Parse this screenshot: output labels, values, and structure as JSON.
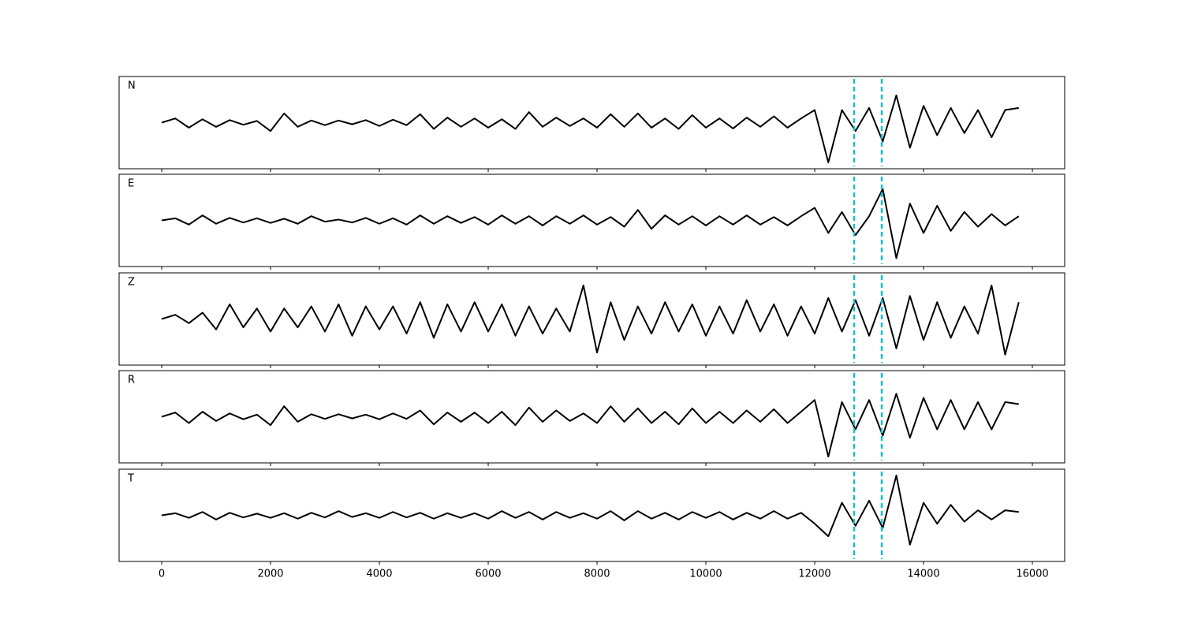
{
  "chart_data": [
    {
      "type": "line",
      "label": "N",
      "color": "#000000",
      "xlim": [
        -783,
        16594
      ],
      "ylim": [
        -1.1,
        1.1
      ],
      "vlines": [
        12725,
        13232
      ],
      "vline_color": "#17becf",
      "x": [
        0,
        250,
        500,
        750,
        1000,
        1250,
        1500,
        1750,
        2000,
        2250,
        2500,
        2750,
        3000,
        3250,
        3500,
        3750,
        4000,
        4250,
        4500,
        4750,
        5000,
        5250,
        5500,
        5750,
        6000,
        6250,
        6500,
        6750,
        7000,
        7250,
        7500,
        7750,
        8000,
        8250,
        8500,
        8750,
        9000,
        9250,
        9500,
        9750,
        10000,
        10250,
        10500,
        10750,
        11000,
        11250,
        11500,
        11750,
        12000,
        12250,
        12500,
        12750,
        13000,
        13250,
        13500,
        13750,
        14000,
        14250,
        14500,
        14750,
        15000,
        15250,
        15500,
        15750
      ],
      "values": [
        0,
        0.1,
        -0.12,
        0.08,
        -0.1,
        0.06,
        -0.05,
        0.04,
        -0.2,
        0.22,
        -0.1,
        0.05,
        -0.06,
        0.05,
        -0.04,
        0.06,
        -0.08,
        0.07,
        -0.06,
        0.2,
        -0.15,
        0.12,
        -0.1,
        0.1,
        -0.12,
        0.08,
        -0.15,
        0.25,
        -0.1,
        0.12,
        -0.08,
        0.1,
        -0.12,
        0.2,
        -0.1,
        0.22,
        -0.12,
        0.1,
        -0.15,
        0.18,
        -0.12,
        0.1,
        -0.14,
        0.12,
        -0.1,
        0.15,
        -0.12,
        0.1,
        0.3,
        -0.95,
        0.3,
        -0.2,
        0.35,
        -0.45,
        0.65,
        -0.6,
        0.4,
        -0.3,
        0.35,
        -0.25,
        0.3,
        -0.35,
        0.3,
        0.35
      ]
    },
    {
      "type": "line",
      "label": "E",
      "color": "#000000",
      "xlim": [
        -783,
        16594
      ],
      "ylim": [
        -1.1,
        1.1
      ],
      "vlines": [
        12725,
        13232
      ],
      "vline_color": "#17becf",
      "x": [
        0,
        250,
        500,
        750,
        1000,
        1250,
        1500,
        1750,
        2000,
        2250,
        2500,
        2750,
        3000,
        3250,
        3500,
        3750,
        4000,
        4250,
        4500,
        4750,
        5000,
        5250,
        5500,
        5750,
        6000,
        6250,
        6500,
        6750,
        7000,
        7250,
        7500,
        7750,
        8000,
        8250,
        8500,
        8750,
        9000,
        9250,
        9500,
        9750,
        10000,
        10250,
        10500,
        10750,
        11000,
        11250,
        11500,
        11750,
        12000,
        12250,
        12500,
        12750,
        13000,
        13250,
        13500,
        13750,
        14000,
        14250,
        14500,
        14750,
        15000,
        15250,
        15500,
        15750
      ],
      "values": [
        0,
        0.05,
        -0.1,
        0.12,
        -0.08,
        0.06,
        -0.05,
        0.05,
        -0.06,
        0.04,
        -0.08,
        0.1,
        -0.03,
        0.02,
        -0.05,
        0.06,
        -0.08,
        0.05,
        -0.1,
        0.12,
        -0.08,
        0.1,
        -0.06,
        0.08,
        -0.1,
        0.12,
        -0.08,
        0.1,
        -0.12,
        0.1,
        -0.08,
        0.12,
        -0.1,
        0.08,
        -0.15,
        0.25,
        -0.2,
        0.12,
        -0.1,
        0.1,
        -0.12,
        0.1,
        -0.1,
        0.12,
        -0.1,
        0.08,
        -0.12,
        0.1,
        0.3,
        -0.3,
        0.2,
        -0.35,
        0.1,
        0.75,
        -0.9,
        0.4,
        -0.3,
        0.35,
        -0.25,
        0.2,
        -0.15,
        0.15,
        -0.12,
        0.1
      ]
    },
    {
      "type": "line",
      "label": "Z",
      "color": "#000000",
      "xlim": [
        -783,
        16594
      ],
      "ylim": [
        -1.1,
        1.1
      ],
      "vlines": [
        12725,
        13232
      ],
      "vline_color": "#17becf",
      "x": [
        0,
        250,
        500,
        750,
        1000,
        1250,
        1500,
        1750,
        2000,
        2250,
        2500,
        2750,
        3000,
        3250,
        3500,
        3750,
        4000,
        4250,
        4500,
        4750,
        5000,
        5250,
        5500,
        5750,
        6000,
        6250,
        6500,
        6750,
        7000,
        7250,
        7500,
        7750,
        8000,
        8250,
        8500,
        8750,
        9000,
        9250,
        9500,
        9750,
        10000,
        10250,
        10500,
        10750,
        11000,
        11250,
        11500,
        11750,
        12000,
        12250,
        12500,
        12750,
        13000,
        13250,
        13500,
        13750,
        14000,
        14250,
        14500,
        14750,
        15000,
        15250,
        15500,
        15750
      ],
      "values": [
        0,
        0.1,
        -0.1,
        0.15,
        -0.25,
        0.35,
        -0.2,
        0.25,
        -0.3,
        0.25,
        -0.2,
        0.3,
        -0.3,
        0.35,
        -0.4,
        0.3,
        -0.25,
        0.3,
        -0.35,
        0.4,
        -0.45,
        0.35,
        -0.3,
        0.4,
        -0.3,
        0.35,
        -0.4,
        0.3,
        -0.35,
        0.25,
        -0.3,
        0.8,
        -0.8,
        0.4,
        -0.5,
        0.3,
        -0.35,
        0.4,
        -0.3,
        0.35,
        -0.4,
        0.3,
        -0.35,
        0.45,
        -0.3,
        0.35,
        -0.4,
        0.3,
        -0.35,
        0.5,
        -0.3,
        0.45,
        -0.4,
        0.5,
        -0.7,
        0.55,
        -0.5,
        0.4,
        -0.45,
        0.3,
        -0.35,
        0.8,
        -0.85,
        0.4
      ]
    },
    {
      "type": "line",
      "label": "R",
      "color": "#000000",
      "xlim": [
        -783,
        16594
      ],
      "ylim": [
        -1.1,
        1.1
      ],
      "vlines": [
        12725,
        13232
      ],
      "vline_color": "#17becf",
      "x": [
        0,
        250,
        500,
        750,
        1000,
        1250,
        1500,
        1750,
        2000,
        2250,
        2500,
        2750,
        3000,
        3250,
        3500,
        3750,
        4000,
        4250,
        4500,
        4750,
        5000,
        5250,
        5500,
        5750,
        6000,
        6250,
        6500,
        6750,
        7000,
        7250,
        7500,
        7750,
        8000,
        8250,
        8500,
        8750,
        9000,
        9250,
        9500,
        9750,
        10000,
        10250,
        10500,
        10750,
        11000,
        11250,
        11500,
        11750,
        12000,
        12250,
        12500,
        12750,
        13000,
        13250,
        13500,
        13750,
        14000,
        14250,
        14500,
        14750,
        15000,
        15250,
        15500,
        15750
      ],
      "values": [
        0,
        0.1,
        -0.15,
        0.12,
        -0.1,
        0.08,
        -0.06,
        0.05,
        -0.2,
        0.25,
        -0.12,
        0.06,
        -0.05,
        0.06,
        -0.04,
        0.05,
        -0.06,
        0.08,
        -0.05,
        0.15,
        -0.18,
        0.1,
        -0.12,
        0.1,
        -0.15,
        0.12,
        -0.2,
        0.22,
        -0.12,
        0.15,
        -0.1,
        0.08,
        -0.15,
        0.25,
        -0.12,
        0.2,
        -0.15,
        0.12,
        -0.18,
        0.2,
        -0.15,
        0.12,
        -0.15,
        0.15,
        -0.12,
        0.18,
        -0.15,
        0.12,
        0.4,
        -0.95,
        0.35,
        -0.3,
        0.4,
        -0.45,
        0.55,
        -0.5,
        0.45,
        -0.3,
        0.4,
        -0.3,
        0.35,
        -0.3,
        0.35,
        0.3
      ]
    },
    {
      "type": "line",
      "label": "T",
      "color": "#000000",
      "xlim": [
        -783,
        16594
      ],
      "ylim": [
        -1.1,
        1.1
      ],
      "vlines": [
        12725,
        13232
      ],
      "vline_color": "#17becf",
      "xticks": [
        0,
        2000,
        4000,
        6000,
        8000,
        10000,
        12000,
        14000,
        16000
      ],
      "x": [
        0,
        250,
        500,
        750,
        1000,
        1250,
        1500,
        1750,
        2000,
        2250,
        2500,
        2750,
        3000,
        3250,
        3500,
        3750,
        4000,
        4250,
        4500,
        4750,
        5000,
        5250,
        5500,
        5750,
        6000,
        6250,
        6500,
        6750,
        7000,
        7250,
        7500,
        7750,
        8000,
        8250,
        8500,
        8750,
        9000,
        9250,
        9500,
        9750,
        10000,
        10250,
        10500,
        10750,
        11000,
        11250,
        11500,
        11750,
        12000,
        12250,
        12500,
        12750,
        13000,
        13250,
        13500,
        13750,
        14000,
        14250,
        14500,
        14750,
        15000,
        15250,
        15500,
        15750
      ],
      "values": [
        0,
        0.05,
        -0.06,
        0.08,
        -0.1,
        0.06,
        -0.05,
        0.04,
        -0.06,
        0.05,
        -0.08,
        0.06,
        -0.05,
        0.1,
        -0.04,
        0.05,
        -0.06,
        0.08,
        -0.05,
        0.06,
        -0.08,
        0.05,
        -0.06,
        0.05,
        -0.08,
        0.1,
        -0.06,
        0.08,
        -0.1,
        0.08,
        -0.06,
        0.05,
        -0.08,
        0.1,
        -0.12,
        0.1,
        -0.08,
        0.06,
        -0.1,
        0.08,
        -0.06,
        0.08,
        -0.1,
        0.06,
        -0.08,
        0.1,
        -0.08,
        0.06,
        -0.2,
        -0.5,
        0.3,
        -0.25,
        0.35,
        -0.3,
        0.95,
        -0.7,
        0.3,
        -0.2,
        0.25,
        -0.15,
        0.12,
        -0.1,
        0.12,
        0.08
      ]
    }
  ]
}
